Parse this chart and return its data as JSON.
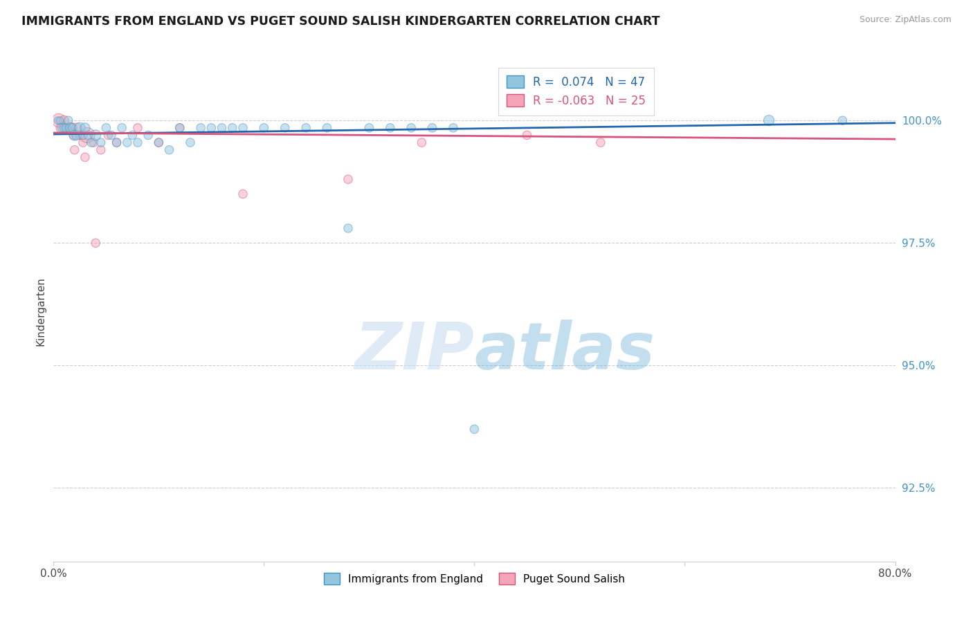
{
  "title": "IMMIGRANTS FROM ENGLAND VS PUGET SOUND SALISH KINDERGARTEN CORRELATION CHART",
  "source": "Source: ZipAtlas.com",
  "ylabel": "Kindergarten",
  "xlim": [
    0.0,
    80.0
  ],
  "ylim": [
    91.0,
    101.2
  ],
  "yticks": [
    92.5,
    95.0,
    97.5,
    100.0
  ],
  "xtick_labels": [
    "0.0%",
    "",
    "",
    "",
    "80.0%"
  ],
  "ytick_labels": [
    "92.5%",
    "95.0%",
    "97.5%",
    "100.0%"
  ],
  "blue_color": "#92c5de",
  "blue_edge_color": "#4393c3",
  "pink_color": "#f4a6b8",
  "pink_edge_color": "#d6537a",
  "blue_line_color": "#2166ac",
  "pink_line_color": "#d6537a",
  "legend_blue_label": "R =  0.074   N = 47",
  "legend_pink_label": "R = -0.063   N = 25",
  "legend_blue_series": "Immigrants from England",
  "legend_pink_series": "Puget Sound Salish",
  "watermark_zip": "ZIP",
  "watermark_atlas": "atlas",
  "blue_R": 0.074,
  "pink_R": -0.063,
  "blue_points_x": [
    0.4,
    0.6,
    0.8,
    1.0,
    1.2,
    1.4,
    1.6,
    1.8,
    2.0,
    2.2,
    2.5,
    2.8,
    3.0,
    3.3,
    3.6,
    4.0,
    4.5,
    5.0,
    5.5,
    6.0,
    6.5,
    7.0,
    7.5,
    8.0,
    9.0,
    10.0,
    11.0,
    12.0,
    13.0,
    14.0,
    15.0,
    16.0,
    17.0,
    18.0,
    20.0,
    22.0,
    24.0,
    26.0,
    28.0,
    30.0,
    32.0,
    34.0,
    36.0,
    38.0,
    40.0,
    68.0,
    75.0
  ],
  "blue_points_y": [
    100.0,
    100.0,
    99.85,
    99.85,
    99.85,
    100.0,
    99.85,
    99.85,
    99.7,
    99.7,
    99.85,
    99.7,
    99.85,
    99.7,
    99.55,
    99.7,
    99.55,
    99.85,
    99.7,
    99.55,
    99.85,
    99.55,
    99.7,
    99.55,
    99.7,
    99.55,
    99.4,
    99.85,
    99.55,
    99.85,
    99.85,
    99.85,
    99.85,
    99.85,
    99.85,
    99.85,
    99.85,
    99.85,
    97.8,
    99.85,
    99.85,
    99.85,
    99.85,
    99.85,
    93.7,
    100.0,
    100.0
  ],
  "blue_sizes": [
    60,
    60,
    80,
    80,
    80,
    80,
    100,
    80,
    120,
    100,
    120,
    80,
    100,
    80,
    80,
    120,
    80,
    80,
    80,
    80,
    80,
    80,
    80,
    80,
    80,
    80,
    80,
    80,
    80,
    80,
    80,
    80,
    80,
    80,
    80,
    80,
    80,
    80,
    80,
    80,
    80,
    80,
    80,
    80,
    80,
    120,
    80
  ],
  "pink_points_x": [
    0.5,
    0.8,
    1.0,
    1.3,
    1.6,
    1.9,
    2.2,
    2.5,
    2.8,
    3.2,
    3.8,
    4.5,
    5.2,
    6.0,
    8.0,
    10.0,
    12.0,
    18.0,
    28.0,
    35.0,
    45.0,
    52.0,
    2.0,
    3.0,
    4.0
  ],
  "pink_points_y": [
    100.0,
    99.85,
    100.0,
    99.85,
    99.85,
    99.7,
    99.85,
    99.7,
    99.55,
    99.7,
    99.55,
    99.4,
    99.7,
    99.55,
    99.85,
    99.55,
    99.85,
    98.5,
    98.8,
    99.55,
    99.7,
    99.55,
    99.4,
    99.25,
    97.5
  ],
  "pink_sizes": [
    200,
    150,
    100,
    80,
    130,
    80,
    100,
    80,
    80,
    250,
    80,
    80,
    80,
    80,
    80,
    80,
    80,
    80,
    80,
    80,
    80,
    80,
    80,
    80,
    80
  ],
  "blue_line_y0": 99.72,
  "blue_line_y1": 99.95,
  "pink_line_y0": 99.75,
  "pink_line_y1": 99.62
}
